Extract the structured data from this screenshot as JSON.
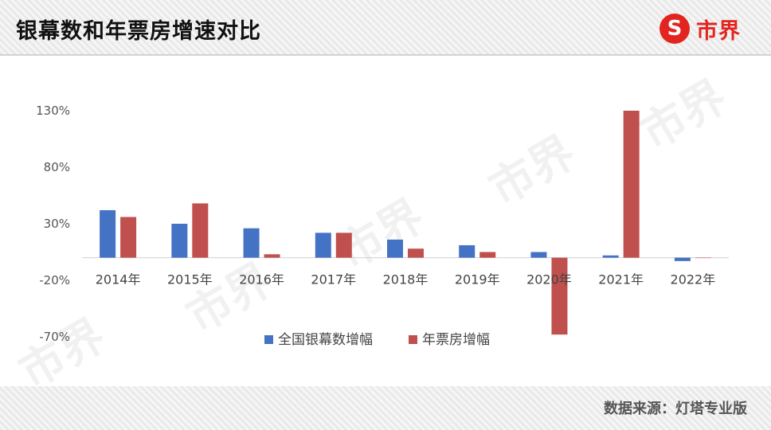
{
  "header": {
    "title": "银幕数和年票房增速对比"
  },
  "logo": {
    "symbol": "S",
    "text": "市界"
  },
  "footer": {
    "source": "数据来源：灯塔专业版"
  },
  "watermark": {
    "text": "市界"
  },
  "colors": {
    "series1": "#4472c4",
    "series2": "#c0504d",
    "brand": "#e32520"
  },
  "chart_data": {
    "type": "bar",
    "title": "",
    "xlabel": "",
    "ylabel": "",
    "categories": [
      "2014年",
      "2015年",
      "2016年",
      "2017年",
      "2018年",
      "2019年",
      "2020年",
      "2021年",
      "2022年"
    ],
    "series": [
      {
        "name": "全国银幕数增幅",
        "color": "#4472c4",
        "values": [
          42,
          30,
          26,
          22,
          16,
          11,
          5,
          2,
          -3
        ]
      },
      {
        "name": "年票房增幅",
        "color": "#c0504d",
        "values": [
          36,
          48,
          3,
          22,
          8,
          5,
          -68,
          130,
          0
        ]
      }
    ],
    "ylim": [
      -70,
      130
    ],
    "yticks": [
      -70,
      -20,
      30,
      80,
      130
    ],
    "ytick_labels": [
      "-70%",
      "-20%",
      "30%",
      "80%",
      "130%"
    ],
    "legend_position": "bottom-center",
    "grid": false
  }
}
